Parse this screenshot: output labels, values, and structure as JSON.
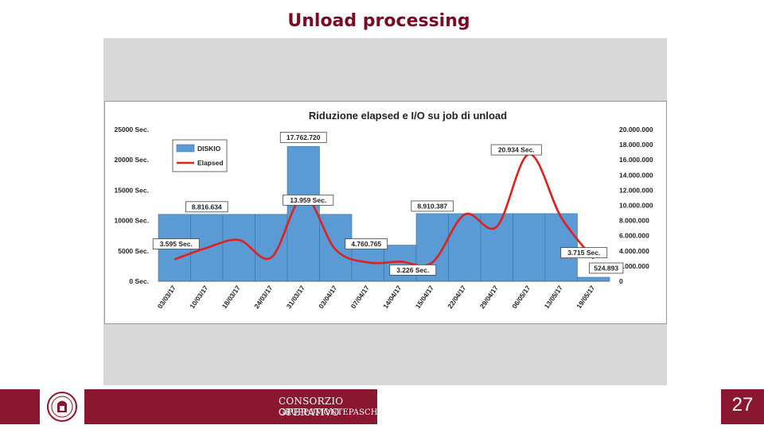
{
  "slide": {
    "title": "Unload processing",
    "page_number": "27"
  },
  "footer": {
    "brand_line1": "CONSORZIO OPERATIVO",
    "brand_line2": "GRUPPOMONTEPASCHI",
    "colors": {
      "bar": "#8b1630",
      "title": "#7a0b22"
    }
  },
  "chart_data": {
    "type": "bar+line",
    "title": "Riduzione elapsed e I/O su job di unload",
    "categories": [
      "03/03/17",
      "10/03/17",
      "18/03/17",
      "24/03/17",
      "31/03/17",
      "03/04/17",
      "07/04/17",
      "14/04/17",
      "15/04/17",
      "22/04/17",
      "29/04/17",
      "06/05/17",
      "13/05/17",
      "19/05/17"
    ],
    "series": [
      {
        "name": "DISKIO",
        "kind": "bar",
        "axis": "right",
        "color": "#5b9bd5",
        "values": [
          8816634,
          8816634,
          8816634,
          8816634,
          17762720,
          8816634,
          4760765,
          4760765,
          8910387,
          8910387,
          8910387,
          8910387,
          8910387,
          524893
        ]
      },
      {
        "name": "Elapsed",
        "kind": "line",
        "axis": "left",
        "color": "#e0201b",
        "values": [
          3595,
          5500,
          6800,
          3900,
          13959,
          5200,
          3100,
          3226,
          3100,
          11000,
          9000,
          20934,
          10500,
          3715
        ]
      }
    ],
    "left_axis": {
      "ticks": [
        "0 Sec.",
        "5000 Sec.",
        "10000 Sec.",
        "15000 Sec.",
        "20000 Sec.",
        "25000 Sec."
      ],
      "ylim": [
        0,
        25000
      ]
    },
    "right_axis": {
      "ticks": [
        "0",
        "2.000.000",
        "4.000.000",
        "6.000.000",
        "8.000.000",
        "10.000.000",
        "12.000.000",
        "14.000.000",
        "16.000.000",
        "18.000.000",
        "20.000.000"
      ],
      "ylim": [
        0,
        20000000
      ]
    },
    "annotations": [
      {
        "text": "8.816.634",
        "series": "DISKIO",
        "index": 1
      },
      {
        "text": "17.762.720",
        "series": "DISKIO",
        "index": 4
      },
      {
        "text": "4.760.765",
        "series": "DISKIO",
        "index": 6
      },
      {
        "text": "8.910.387",
        "series": "DISKIO",
        "index": 8
      },
      {
        "text": "524.893",
        "series": "DISKIO",
        "index": 13
      },
      {
        "text": "3.595 Sec.",
        "series": "Elapsed",
        "index": 0
      },
      {
        "text": "13.959 Sec.",
        "series": "Elapsed",
        "index": 4
      },
      {
        "text": "3.226 Sec.",
        "series": "Elapsed",
        "index": 7
      },
      {
        "text": "20.934 Sec.",
        "series": "Elapsed",
        "index": 11
      },
      {
        "text": "3.715 Sec.",
        "series": "Elapsed",
        "index": 13
      }
    ],
    "legend_position": "top-left",
    "grid": false
  }
}
